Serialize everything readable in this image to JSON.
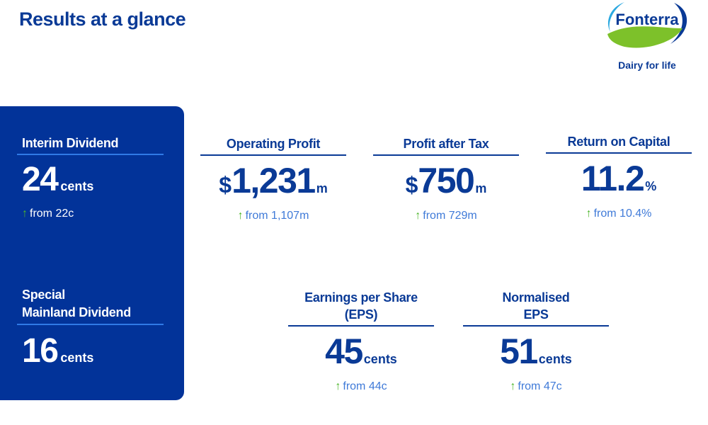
{
  "title": "Results at a glance",
  "logo": {
    "brand": "Fonterra",
    "tagline": "Dairy for life",
    "colors": {
      "blue": "#0a3a96",
      "green": "#7dc12a",
      "light_blue": "#2aa8e0"
    }
  },
  "colors": {
    "panel": "#023399",
    "accent_line": "#2f7ae5",
    "up_arrow": "#4cb62a",
    "from_text": "#3f7ad8"
  },
  "panel": {
    "interim": {
      "label": "Interim Dividend",
      "value": "24",
      "unit": "cents",
      "arrow": "↑",
      "from": "from 22c"
    },
    "special": {
      "label_line1": "Special",
      "label_line2": "Mainland Dividend",
      "value": "16",
      "unit": "cents"
    }
  },
  "metrics": [
    {
      "label": "Operating Profit",
      "prefix": "$",
      "value": "1,231",
      "unit": "m",
      "arrow": "↑",
      "from": "from 1,107m"
    },
    {
      "label": "Profit after Tax",
      "prefix": "$",
      "value": "750",
      "unit": "m",
      "arrow": "↑",
      "from": "from 729m"
    },
    {
      "label": "Return on Capital",
      "prefix": "",
      "value": "11.2",
      "unit": "%",
      "arrow": "↑",
      "from": "from 10.4%"
    },
    {
      "label_line1": "Earnings per Share",
      "label_line2": "(EPS)",
      "value": "45",
      "unit": "cents",
      "arrow": "↑",
      "from": "from 44c"
    },
    {
      "label_line1": "Normalised",
      "label_line2": "EPS",
      "value": "51",
      "unit": "cents",
      "arrow": "↑",
      "from": "from 47c"
    }
  ]
}
